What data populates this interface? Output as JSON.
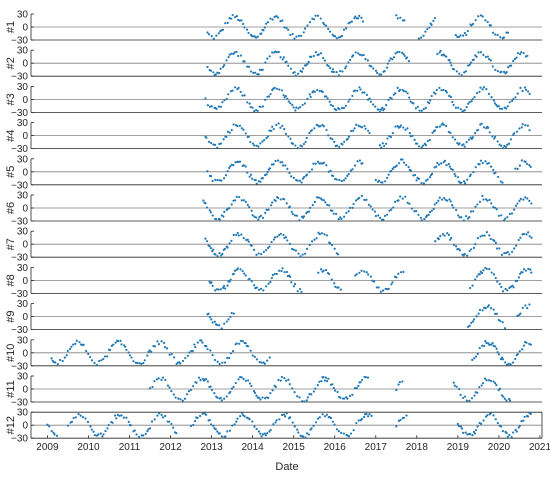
{
  "chart_data": {
    "type": "scatter",
    "xlabel": "Date",
    "x_ticks": [
      "2009",
      "2010",
      "2011",
      "2012",
      "2013",
      "2014",
      "2015",
      "2016",
      "2017",
      "2018",
      "2019",
      "2020",
      "2021"
    ],
    "xlim": [
      2008.6,
      2021.05
    ],
    "ylim": [
      -30,
      30
    ],
    "y_ticks": [
      "30",
      "0",
      "−30"
    ],
    "marker_color": "#1f77b4",
    "axis_color": "#262626",
    "zero_line_color": "#808080",
    "series": [
      {
        "name": "#1",
        "segments": [
          [
            2012.9,
            2016.7
          ],
          [
            2017.5,
            2017.75
          ],
          [
            2018.05,
            2018.45
          ],
          [
            2018.95,
            2020.25
          ]
        ]
      },
      {
        "name": "#2",
        "segments": [
          [
            2012.9,
            2016.05
          ],
          [
            2016.1,
            2017.85
          ],
          [
            2018.5,
            2020.75
          ]
        ]
      },
      {
        "name": "#3",
        "segments": [
          [
            2012.85,
            2020.75
          ]
        ]
      },
      {
        "name": "#4",
        "segments": [
          [
            2012.85,
            2016.85
          ],
          [
            2017.1,
            2020.3
          ],
          [
            2020.35,
            2020.75
          ]
        ]
      },
      {
        "name": "#5",
        "segments": [
          [
            2012.9,
            2016.7
          ],
          [
            2017.0,
            2020.1
          ],
          [
            2020.4,
            2020.8
          ]
        ]
      },
      {
        "name": "#6",
        "segments": [
          [
            2012.8,
            2020.8
          ]
        ]
      },
      {
        "name": "#7",
        "segments": [
          [
            2012.85,
            2016.1
          ],
          [
            2018.45,
            2020.8
          ]
        ]
      },
      {
        "name": "#8",
        "segments": [
          [
            2012.95,
            2015.2
          ],
          [
            2015.6,
            2016.2
          ],
          [
            2016.5,
            2017.7
          ],
          [
            2019.3,
            2020.8
          ]
        ]
      },
      {
        "name": "#9",
        "segments": [
          [
            2012.9,
            2013.55
          ],
          [
            2019.25,
            2020.2
          ],
          [
            2020.45,
            2020.8
          ]
        ]
      },
      {
        "name": "#10",
        "segments": [
          [
            2009.1,
            2014.45
          ],
          [
            2019.35,
            2020.8
          ]
        ]
      },
      {
        "name": "#11",
        "segments": [
          [
            2011.5,
            2012.5
          ],
          [
            2012.55,
            2016.85
          ],
          [
            2017.5,
            2017.7
          ],
          [
            2018.9,
            2020.3
          ]
        ]
      },
      {
        "name": "#12",
        "segments": [
          [
            2009.0,
            2009.25
          ],
          [
            2009.5,
            2012.15
          ],
          [
            2012.5,
            2016.9
          ],
          [
            2017.5,
            2017.8
          ],
          [
            2019.0,
            2020.8
          ]
        ]
      }
    ]
  }
}
